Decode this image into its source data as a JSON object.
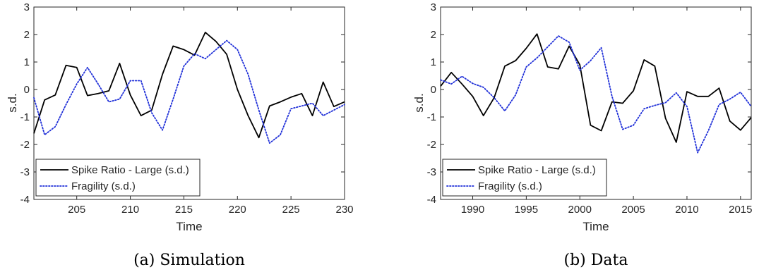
{
  "chart_data": [
    {
      "type": "line",
      "caption": "(a) Simulation",
      "xlabel": "Time",
      "ylabel": "s.d.",
      "xlim": [
        201,
        230
      ],
      "ylim": [
        -4,
        3
      ],
      "xticks": [
        205,
        210,
        215,
        220,
        225,
        230
      ],
      "yticks": [
        -4,
        -3,
        -2,
        -1,
        0,
        1,
        2,
        3
      ],
      "legend_position": "bottom-left",
      "grid": false,
      "series": [
        {
          "name": "Spike Ratio - Large (s.d.)",
          "color": "#000000",
          "style": "solid",
          "x": [
            201,
            202,
            203,
            204,
            205,
            206,
            207,
            208,
            209,
            210,
            211,
            212,
            213,
            214,
            215,
            216,
            217,
            218,
            219,
            220,
            221,
            222,
            223,
            224,
            225,
            226,
            227,
            228,
            229,
            230
          ],
          "y": [
            -1.6,
            -0.38,
            -0.2,
            0.88,
            0.8,
            -0.22,
            -0.15,
            -0.05,
            0.95,
            -0.2,
            -0.95,
            -0.75,
            0.55,
            1.58,
            1.45,
            1.25,
            2.08,
            1.75,
            1.28,
            0.0,
            -0.95,
            -1.75,
            -0.6,
            -0.45,
            -0.28,
            -0.15,
            -0.95,
            0.27,
            -0.62,
            -0.45
          ]
        },
        {
          "name": "Fragility (s.d.)",
          "color": "#1f2fd8",
          "style": "dotted",
          "x": [
            201,
            202,
            203,
            204,
            205,
            206,
            207,
            208,
            209,
            210,
            211,
            212,
            213,
            214,
            215,
            216,
            217,
            218,
            219,
            220,
            221,
            222,
            223,
            224,
            225,
            226,
            227,
            228,
            229,
            230
          ],
          "y": [
            -0.3,
            -1.65,
            -1.35,
            -0.55,
            0.2,
            0.8,
            0.2,
            -0.45,
            -0.35,
            0.32,
            0.32,
            -0.85,
            -1.48,
            -0.35,
            0.85,
            1.3,
            1.12,
            1.45,
            1.78,
            1.45,
            0.55,
            -0.75,
            -1.95,
            -1.65,
            -0.7,
            -0.6,
            -0.5,
            -0.95,
            -0.75,
            -0.55
          ]
        }
      ]
    },
    {
      "type": "line",
      "caption": "(b) Data",
      "xlabel": "Time",
      "ylabel": "s.d.",
      "xlim": [
        1987,
        2016
      ],
      "ylim": [
        -4,
        3
      ],
      "xticks": [
        1990,
        1995,
        2000,
        2005,
        2010,
        2015
      ],
      "yticks": [
        -4,
        -3,
        -2,
        -1,
        0,
        1,
        2,
        3
      ],
      "legend_position": "bottom-left",
      "grid": false,
      "series": [
        {
          "name": "Spike Ratio - Large (s.d.)",
          "color": "#000000",
          "style": "solid",
          "x": [
            1987,
            1988,
            1989,
            1990,
            1991,
            1992,
            1993,
            1994,
            1995,
            1996,
            1997,
            1998,
            1999,
            2000,
            2001,
            2002,
            2003,
            2004,
            2005,
            2006,
            2007,
            2008,
            2009,
            2010,
            2011,
            2012,
            2013,
            2014,
            2015,
            2016
          ],
          "y": [
            0.12,
            0.62,
            0.2,
            -0.25,
            -0.95,
            -0.3,
            0.85,
            1.05,
            1.5,
            2.02,
            0.82,
            0.75,
            1.58,
            0.9,
            -1.3,
            -1.5,
            -0.45,
            -0.5,
            -0.05,
            1.08,
            0.85,
            -1.05,
            -1.92,
            -0.08,
            -0.25,
            -0.25,
            0.05,
            -1.15,
            -1.48,
            -1.02
          ]
        },
        {
          "name": "Fragility (s.d.)",
          "color": "#1f2fd8",
          "style": "dotted",
          "x": [
            1987,
            1988,
            1989,
            1990,
            1991,
            1992,
            1993,
            1994,
            1995,
            1996,
            1997,
            1998,
            1999,
            2000,
            2001,
            2002,
            2003,
            2004,
            2005,
            2006,
            2007,
            2008,
            2009,
            2010,
            2011,
            2012,
            2013,
            2014,
            2015,
            2016
          ],
          "y": [
            0.35,
            0.2,
            0.48,
            0.22,
            0.08,
            -0.3,
            -0.78,
            -0.2,
            0.82,
            1.15,
            1.55,
            1.95,
            1.72,
            0.7,
            1.05,
            1.52,
            -0.25,
            -1.45,
            -1.3,
            -0.7,
            -0.58,
            -0.48,
            -0.12,
            -0.62,
            -2.3,
            -1.5,
            -0.55,
            -0.35,
            -0.1,
            -0.62
          ]
        }
      ]
    }
  ]
}
